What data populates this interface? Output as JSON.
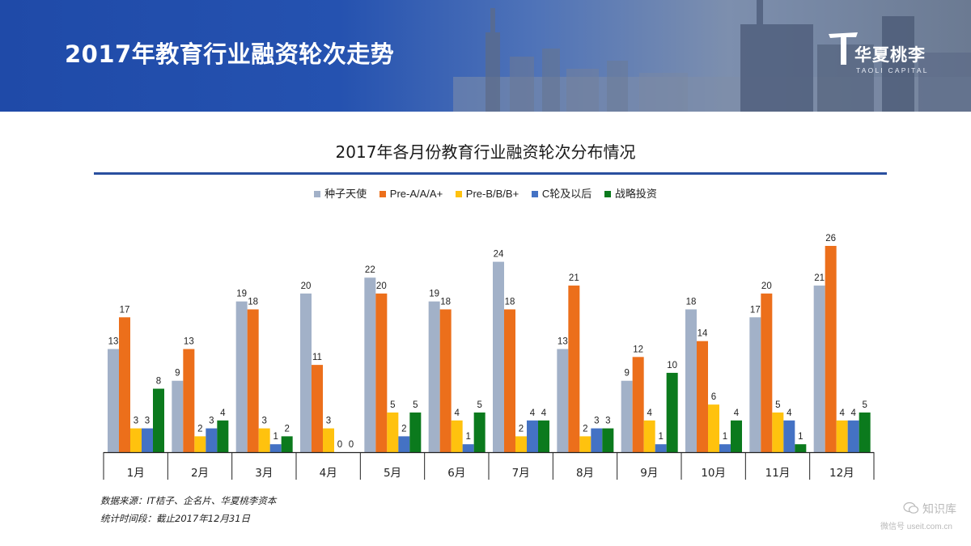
{
  "header": {
    "title": "2017年教育行业融资轮次走势",
    "logo_name": "华夏桃李",
    "logo_sub": "TAOLI CAPITAL"
  },
  "colors": {
    "seed": "#a2b1c8",
    "pre_a": "#ec6f1b",
    "pre_b": "#ffc20e",
    "c_round": "#4472c4",
    "strategic": "#0b7a1d",
    "title_rule": "#2a4f9f"
  },
  "chart_data": {
    "type": "bar",
    "title": "2017年各月份教育行业融资轮次分布情况",
    "xlabel": "",
    "ylabel": "",
    "ylim": [
      0,
      26
    ],
    "legend_position": "top-center",
    "categories": [
      "1月",
      "2月",
      "3月",
      "4月",
      "5月",
      "6月",
      "7月",
      "8月",
      "9月",
      "10月",
      "11月",
      "12月"
    ],
    "series": [
      {
        "name": "种子天使",
        "color": "#a2b1c8",
        "values": [
          13,
          9,
          19,
          20,
          22,
          19,
          24,
          13,
          9,
          18,
          17,
          21
        ]
      },
      {
        "name": "Pre-A/A/A+",
        "color": "#ec6f1b",
        "values": [
          17,
          13,
          18,
          11,
          20,
          18,
          18,
          21,
          12,
          14,
          20,
          26
        ]
      },
      {
        "name": "Pre-B/B/B+",
        "color": "#ffc20e",
        "values": [
          3,
          2,
          3,
          3,
          5,
          4,
          2,
          2,
          4,
          6,
          5,
          4
        ]
      },
      {
        "name": "C轮及以后",
        "color": "#4472c4",
        "values": [
          3,
          3,
          1,
          0,
          2,
          1,
          4,
          3,
          1,
          1,
          4,
          4
        ]
      },
      {
        "name": "战略投资",
        "color": "#0b7a1d",
        "values": [
          8,
          4,
          2,
          0,
          5,
          5,
          4,
          3,
          10,
          4,
          1,
          5
        ]
      }
    ]
  },
  "notes": {
    "source": "数据来源：IT桔子、企名片、华夏桃李资本",
    "period": "统计时间段：截止2017年12月31日"
  },
  "watermark": {
    "icon": "微信",
    "text": "知识库",
    "sub": "微信号 useit.com.cn"
  }
}
